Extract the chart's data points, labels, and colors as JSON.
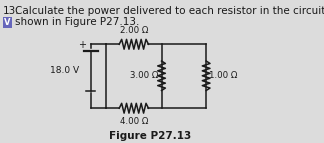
{
  "title_num": "13.",
  "title_text": "Calculate the power delivered to each resistor in the circuit",
  "title_text2": "shown in Figure P27.13.",
  "fig_label": "Figure P27.13",
  "voltage": "18.0 V",
  "r_top": "2.00 Ω",
  "r_mid": "3.00 Ω",
  "r_right": "1.00 Ω",
  "r_bot": "4.00 Ω",
  "bg_color": "#dcdcdc",
  "text_color": "#1a1a1a",
  "line_color": "#1a1a1a",
  "box_color": "#5555aa",
  "font_size_title": 7.5,
  "font_size_circuit": 6.2,
  "font_size_figlabel": 7.5
}
